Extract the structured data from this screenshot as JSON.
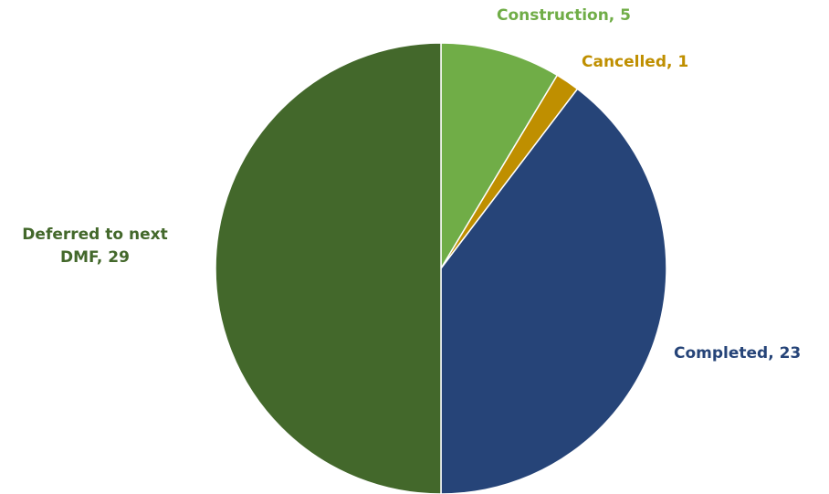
{
  "chart_data": {
    "type": "pie",
    "slices": [
      {
        "label": "Construction",
        "value": 5,
        "color": "#70ad47"
      },
      {
        "label": "Cancelled",
        "value": 1,
        "color": "#bf8f00"
      },
      {
        "label": "Completed",
        "value": 23,
        "color": "#264478"
      },
      {
        "label": "Deferred to next DMF",
        "value": 29,
        "color": "#43682b"
      }
    ],
    "data_labels": [
      {
        "lines": [
          "Construction,  5"
        ]
      },
      {
        "lines": [
          "Cancelled,  1"
        ]
      },
      {
        "lines": [
          "Completed,  23"
        ]
      },
      {
        "lines": [
          "Deferred to next",
          "DMF,  29"
        ]
      }
    ]
  }
}
